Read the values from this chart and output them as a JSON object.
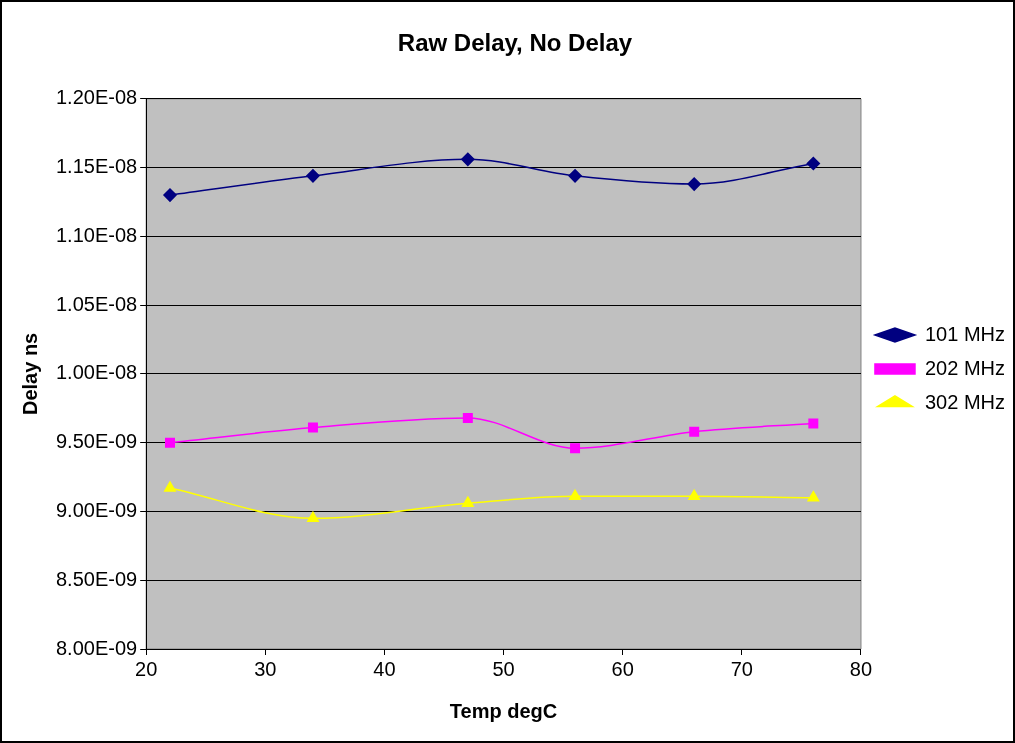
{
  "chart_data": {
    "type": "line",
    "title": "Raw Delay, No Delay",
    "xlabel": "Temp degC",
    "ylabel": "Delay ns",
    "x": [
      22,
      34,
      47,
      56,
      66,
      76
    ],
    "series": [
      {
        "name": "101 MHz",
        "color": "#000080",
        "marker": "diamond",
        "values": [
          1.13e-08,
          1.144e-08,
          1.156e-08,
          1.144e-08,
          1.138e-08,
          1.153e-08
        ]
      },
      {
        "name": "202 MHz",
        "color": "#ff00ff",
        "marker": "square",
        "values": [
          9.5e-09,
          9.61e-09,
          9.68e-09,
          9.46e-09,
          9.58e-09,
          9.64e-09
        ]
      },
      {
        "name": "302 MHz",
        "color": "#ffff00",
        "marker": "triangle",
        "values": [
          9.17e-09,
          8.95e-09,
          9.06e-09,
          9.11e-09,
          9.11e-09,
          9.1e-09
        ]
      }
    ],
    "xlim": [
      20,
      80
    ],
    "xticks": [
      20,
      30,
      40,
      50,
      60,
      70,
      80
    ],
    "ylim": [
      8e-09,
      1.2e-08
    ],
    "yticks": [
      {
        "value": 8e-09,
        "label": "8.00E-09"
      },
      {
        "value": 8.5e-09,
        "label": "8.50E-09"
      },
      {
        "value": 9e-09,
        "label": "9.00E-09"
      },
      {
        "value": 9.5e-09,
        "label": "9.50E-09"
      },
      {
        "value": 1e-08,
        "label": "1.00E-08"
      },
      {
        "value": 1.05e-08,
        "label": "1.05E-08"
      },
      {
        "value": 1.1e-08,
        "label": "1.10E-08"
      },
      {
        "value": 1.15e-08,
        "label": "1.15E-08"
      },
      {
        "value": 1.2e-08,
        "label": "1.20E-08"
      }
    ],
    "grid": "y",
    "legend": "right",
    "line_style": "solid"
  }
}
